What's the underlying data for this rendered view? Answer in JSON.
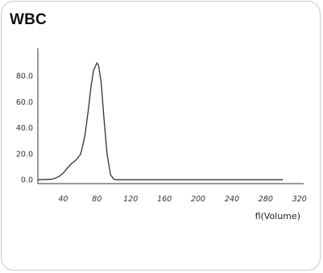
{
  "card": {
    "title": "WBC"
  },
  "chart_data": {
    "type": "line",
    "title": "WBC",
    "xlabel": "fl(Volume)",
    "ylabel": "",
    "xlim": [
      10,
      325
    ],
    "ylim": [
      -3,
      100
    ],
    "y_ticks": [
      0,
      20,
      40,
      60,
      80
    ],
    "y_tick_labels": [
      "0.0",
      "20.0",
      "40.0",
      "60.0",
      "80.0"
    ],
    "x_ticks": [
      40,
      80,
      120,
      160,
      200,
      240,
      280,
      320
    ],
    "x_tick_labels": [
      "40",
      "80",
      "120",
      "160",
      "200",
      "240",
      "280",
      "320"
    ],
    "grid": false,
    "line_color": "#333333",
    "series": [
      {
        "x": [
          10,
          25,
          30,
          35,
          40,
          45,
          50,
          55,
          60,
          62,
          66,
          70,
          73,
          76,
          80,
          82,
          85,
          88,
          92,
          96,
          100,
          103,
          110,
          130,
          200,
          300
        ],
        "values": [
          0,
          0.3,
          1,
          2.5,
          5,
          9,
          12.5,
          15,
          19,
          23,
          35,
          55,
          72,
          84,
          90,
          88,
          75,
          50,
          20,
          4,
          0.3,
          0,
          0,
          0,
          0,
          0
        ]
      }
    ]
  }
}
